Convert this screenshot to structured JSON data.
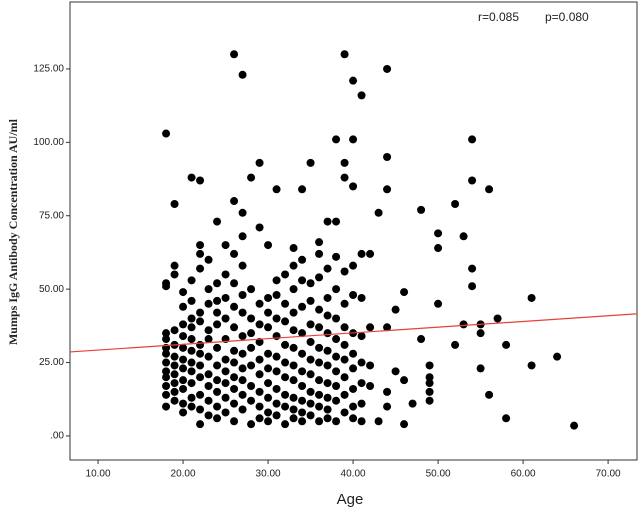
{
  "chart_data": {
    "type": "scatter",
    "x_label": "Age",
    "y_label": "Mumps IgG Antibody Concentration AU/ml",
    "annotations": [
      "r=0.085",
      "p=0.080"
    ],
    "color": "#000000",
    "fit_line": {
      "color": "#e8403a",
      "x": [
        6.7,
        73.4
      ],
      "y": [
        28.6,
        41.6
      ]
    },
    "xlim": [
      6.7,
      73.4
    ],
    "ylim": [
      -8.2,
      147.8
    ],
    "xticks": [
      {
        "value": 10,
        "label": "10.00"
      },
      {
        "value": 20,
        "label": "20.00"
      },
      {
        "value": 30,
        "label": "30.00"
      },
      {
        "value": 40,
        "label": "40.00"
      },
      {
        "value": 50,
        "label": "50.00"
      },
      {
        "value": 60,
        "label": "60.00"
      },
      {
        "value": 70,
        "label": "70.00"
      }
    ],
    "yticks": [
      {
        "value": 0,
        "label": ".00"
      },
      {
        "value": 25,
        "label": "25.00"
      },
      {
        "value": 50,
        "label": "50.00"
      },
      {
        "value": 75,
        "label": "75.00"
      },
      {
        "value": 100,
        "label": "100.00"
      },
      {
        "value": 125,
        "label": "125.00"
      }
    ],
    "x": [
      18,
      18,
      18,
      18,
      18,
      18,
      18,
      18,
      18,
      18,
      18,
      18,
      18,
      19,
      19,
      19,
      19,
      19,
      19,
      19,
      19,
      19,
      19,
      19,
      20,
      20,
      20,
      20,
      20,
      20,
      20,
      20,
      20,
      20,
      20,
      21,
      21,
      21,
      21,
      21,
      21,
      21,
      21,
      21,
      21,
      21,
      21,
      22,
      22,
      22,
      22,
      22,
      22,
      22,
      22,
      22,
      22,
      22,
      22,
      22,
      23,
      23,
      23,
      23,
      23,
      23,
      23,
      23,
      23,
      23,
      24,
      24,
      24,
      24,
      24,
      24,
      24,
      24,
      24,
      24,
      24,
      25,
      25,
      25,
      25,
      25,
      25,
      25,
      25,
      25,
      25,
      26,
      26,
      26,
      26,
      26,
      26,
      26,
      26,
      26,
      26,
      26,
      26,
      27,
      27,
      27,
      27,
      27,
      27,
      27,
      27,
      27,
      27,
      27,
      27,
      28,
      28,
      28,
      28,
      28,
      28,
      28,
      28,
      28,
      29,
      29,
      29,
      29,
      29,
      29,
      29,
      29,
      29,
      29,
      30,
      30,
      30,
      30,
      30,
      30,
      30,
      30,
      30,
      30,
      31,
      31,
      31,
      31,
      31,
      31,
      31,
      31,
      31,
      31,
      32,
      32,
      32,
      32,
      32,
      32,
      32,
      32,
      32,
      33,
      33,
      33,
      33,
      33,
      33,
      33,
      33,
      33,
      33,
      33,
      34,
      34,
      34,
      34,
      34,
      34,
      34,
      34,
      34,
      34,
      34,
      35,
      35,
      35,
      35,
      35,
      35,
      35,
      35,
      35,
      35,
      36,
      36,
      36,
      36,
      36,
      36,
      36,
      36,
      36,
      36,
      36,
      37,
      37,
      37,
      37,
      37,
      37,
      37,
      37,
      37,
      37,
      37,
      38,
      38,
      38,
      38,
      38,
      38,
      38,
      38,
      38,
      38,
      38,
      39,
      39,
      39,
      39,
      39,
      39,
      39,
      39,
      39,
      39,
      39,
      40,
      40,
      40,
      40,
      40,
      40,
      40,
      40,
      40,
      40,
      40,
      41,
      41,
      41,
      41,
      41,
      41,
      41,
      41,
      42,
      42,
      42,
      42,
      43,
      43,
      44,
      44,
      44,
      44,
      44,
      44,
      45,
      45,
      46,
      46,
      46,
      47,
      48,
      48,
      49,
      49,
      49,
      49,
      49,
      50,
      50,
      50,
      52,
      52,
      53,
      53,
      54,
      54,
      54,
      54,
      55,
      55,
      55,
      56,
      56,
      57,
      58,
      58,
      61,
      61,
      64,
      66
    ],
    "values": [
      10,
      14,
      17,
      20,
      22,
      25,
      28,
      30,
      33,
      35,
      51,
      52,
      103,
      12,
      15,
      18,
      21,
      24,
      27,
      31,
      36,
      55,
      58,
      79,
      8,
      11,
      16,
      19,
      23,
      26,
      30,
      34,
      38,
      44,
      49,
      10,
      13,
      18,
      22,
      25,
      29,
      33,
      37,
      40,
      46,
      53,
      88,
      4,
      9,
      14,
      20,
      24,
      28,
      31,
      39,
      42,
      57,
      62,
      65,
      87,
      7,
      12,
      17,
      21,
      27,
      33,
      36,
      45,
      50,
      60,
      6,
      10,
      15,
      19,
      24,
      30,
      38,
      42,
      46,
      52,
      73,
      8,
      13,
      18,
      22,
      26,
      33,
      40,
      47,
      55,
      65,
      5,
      11,
      16,
      20,
      25,
      29,
      37,
      44,
      52,
      62,
      80,
      130,
      9,
      14,
      19,
      23,
      28,
      34,
      42,
      48,
      58,
      68,
      76,
      123,
      4,
      12,
      17,
      24,
      30,
      35,
      40,
      50,
      88,
      6,
      10,
      15,
      21,
      26,
      32,
      38,
      45,
      71,
      93,
      5,
      8,
      13,
      18,
      23,
      28,
      37,
      42,
      47,
      65,
      7,
      11,
      16,
      22,
      27,
      34,
      40,
      48,
      53,
      84,
      4,
      10,
      14,
      20,
      25,
      31,
      39,
      45,
      55,
      6,
      9,
      13,
      19,
      24,
      30,
      36,
      42,
      50,
      58,
      64,
      5,
      8,
      12,
      17,
      22,
      28,
      35,
      44,
      53,
      60,
      84,
      7,
      11,
      15,
      21,
      26,
      32,
      38,
      46,
      52,
      93,
      5,
      10,
      14,
      19,
      25,
      30,
      37,
      43,
      54,
      62,
      66,
      6,
      9,
      13,
      18,
      24,
      29,
      35,
      41,
      47,
      57,
      73,
      5,
      12,
      17,
      22,
      27,
      33,
      40,
      50,
      61,
      73,
      101,
      8,
      14,
      20,
      26,
      31,
      37,
      45,
      56,
      88,
      93,
      130,
      6,
      10,
      16,
      23,
      28,
      35,
      48,
      58,
      85,
      101,
      121,
      5,
      11,
      18,
      25,
      34,
      47,
      62,
      116,
      17,
      24,
      37,
      62,
      76,
      5,
      10,
      15,
      37,
      84,
      95,
      125,
      22,
      43,
      4,
      19,
      49,
      11,
      33,
      77,
      12,
      15,
      18,
      20,
      24,
      45,
      64,
      69,
      31,
      79,
      38,
      68,
      51,
      57,
      87,
      101,
      23,
      35,
      38,
      14,
      84,
      40,
      6,
      31,
      24,
      47,
      27,
      3.5
    ]
  }
}
